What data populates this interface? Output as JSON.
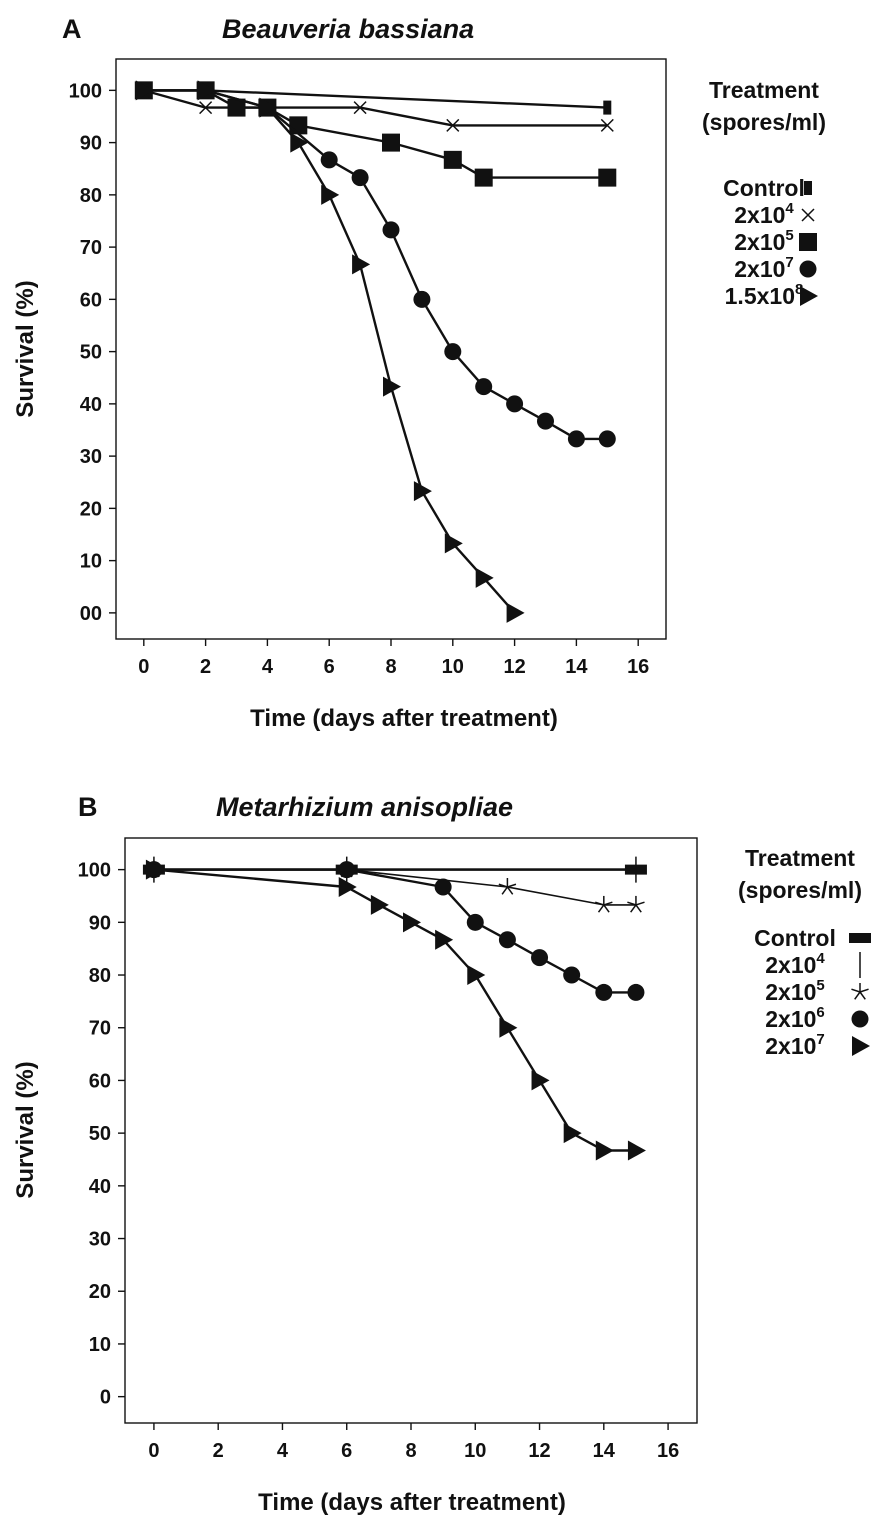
{
  "chart_data": [
    {
      "type": "line",
      "panel_label": "A",
      "title": "Beauveria bassiana",
      "xlabel": "Time (days after treatment)",
      "ylabel": "Survival (%)",
      "xlim": [
        -0.9,
        16.9
      ],
      "ylim": [
        -5,
        106
      ],
      "xticks": [
        "0",
        "2",
        "4",
        "6",
        "8",
        "10",
        "12",
        "14",
        "16"
      ],
      "yticks": [
        "00",
        "10",
        "20",
        "30",
        "40",
        "50",
        "60",
        "70",
        "80",
        "90",
        "100"
      ],
      "grid": false,
      "legend": {
        "position": "right",
        "title_line1": "Treatment",
        "title_line2": "(spores/ml)",
        "entries": [
          {
            "base": "Control",
            "sup": "",
            "marker": "small-square"
          },
          {
            "base": "2x10",
            "sup": "4",
            "marker": "bowtie"
          },
          {
            "base": "2x10",
            "sup": "5",
            "marker": "square"
          },
          {
            "base": "2x10",
            "sup": "7",
            "marker": "circle"
          },
          {
            "base": "1.5x10",
            "sup": "8",
            "marker": "triangle"
          }
        ]
      },
      "series": [
        {
          "name": "Control",
          "marker": "small-square",
          "x": [
            0,
            2,
            15
          ],
          "y": [
            100,
            100,
            96.7
          ]
        },
        {
          "name": "2x10^4",
          "marker": "bowtie",
          "x": [
            0,
            2,
            4,
            7,
            10,
            15
          ],
          "y": [
            100,
            96.7,
            96.7,
            96.7,
            93.3,
            93.3
          ]
        },
        {
          "name": "2x10^5",
          "marker": "square",
          "x": [
            0,
            2,
            3,
            4,
            5,
            8,
            10,
            11,
            15
          ],
          "y": [
            100,
            100,
            96.7,
            96.7,
            93.3,
            90,
            86.7,
            83.3,
            83.3
          ]
        },
        {
          "name": "2x10^7",
          "marker": "circle",
          "x": [
            0,
            2,
            4,
            6,
            7,
            8,
            9,
            10,
            11,
            12,
            13,
            14,
            15
          ],
          "y": [
            100,
            100,
            96.7,
            86.7,
            83.3,
            73.3,
            60,
            50,
            43.3,
            40,
            36.7,
            33.3,
            33.3
          ]
        },
        {
          "name": "1.5x10^8",
          "marker": "triangle",
          "x": [
            0,
            2,
            4,
            5,
            6,
            7,
            8,
            9,
            10,
            11,
            12
          ],
          "y": [
            100,
            100,
            96.7,
            90,
            80,
            66.7,
            43.3,
            23.3,
            13.3,
            6.7,
            0
          ]
        }
      ]
    },
    {
      "type": "line",
      "panel_label": "B",
      "title": "Metarhizium anisopliae",
      "xlabel": "Time (days after treatment)",
      "ylabel": "Survival (%)",
      "xlim": [
        -0.9,
        16.9
      ],
      "ylim": [
        -5,
        106
      ],
      "xticks": [
        "0",
        "2",
        "4",
        "6",
        "8",
        "10",
        "12",
        "14",
        "16"
      ],
      "yticks": [
        "0",
        "10",
        "20",
        "30",
        "40",
        "50",
        "60",
        "70",
        "80",
        "90",
        "100"
      ],
      "grid": false,
      "legend": {
        "position": "right",
        "title_line1": "Treatment",
        "title_line2": "(spores/ml)",
        "entries": [
          {
            "base": "Control",
            "sup": "",
            "marker": "bar"
          },
          {
            "base": "2x10",
            "sup": "4",
            "marker": "vline"
          },
          {
            "base": "2x10",
            "sup": "5",
            "marker": "star"
          },
          {
            "base": "2x10",
            "sup": "6",
            "marker": "circle"
          },
          {
            "base": "2x10",
            "sup": "7",
            "marker": "triangle"
          }
        ]
      },
      "series": [
        {
          "name": "Control",
          "marker": "bar",
          "x": [
            0,
            6,
            15
          ],
          "y": [
            100,
            100,
            100
          ]
        },
        {
          "name": "2x10^4",
          "marker": "vline",
          "x": [
            0,
            6,
            15
          ],
          "y": [
            100,
            100,
            100
          ]
        },
        {
          "name": "2x10^5",
          "marker": "star",
          "x": [
            0,
            6,
            11,
            14,
            15
          ],
          "y": [
            100,
            100,
            96.7,
            93.3,
            93.3
          ]
        },
        {
          "name": "2x10^6",
          "marker": "circle",
          "x": [
            0,
            6,
            9,
            10,
            11,
            12,
            13,
            14,
            15
          ],
          "y": [
            100,
            100,
            96.7,
            90,
            86.7,
            83.3,
            80,
            76.7,
            76.7
          ]
        },
        {
          "name": "2x10^7",
          "marker": "triangle",
          "x": [
            0,
            6,
            7,
            8,
            9,
            10,
            11,
            12,
            13,
            14,
            15
          ],
          "y": [
            100,
            96.7,
            93.3,
            90,
            86.7,
            80,
            70,
            60,
            50,
            46.7,
            46.7
          ]
        }
      ]
    }
  ]
}
